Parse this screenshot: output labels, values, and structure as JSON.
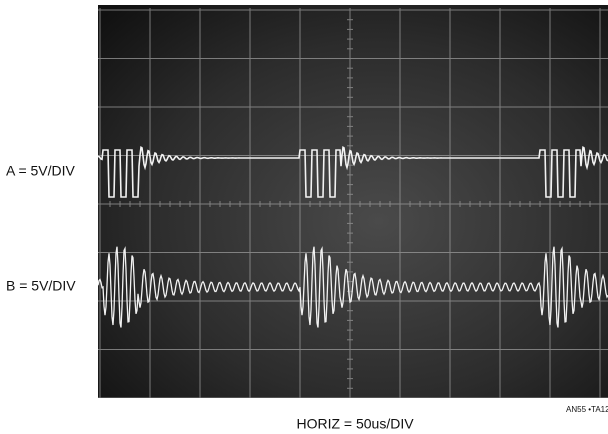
{
  "labels": {
    "channel_a": "A = 5V/DIV",
    "channel_b": "B = 5V/DIV",
    "horizontal": "HORIZ = 50us/DIV",
    "figure_id": "AN55 •TA12"
  }
}
